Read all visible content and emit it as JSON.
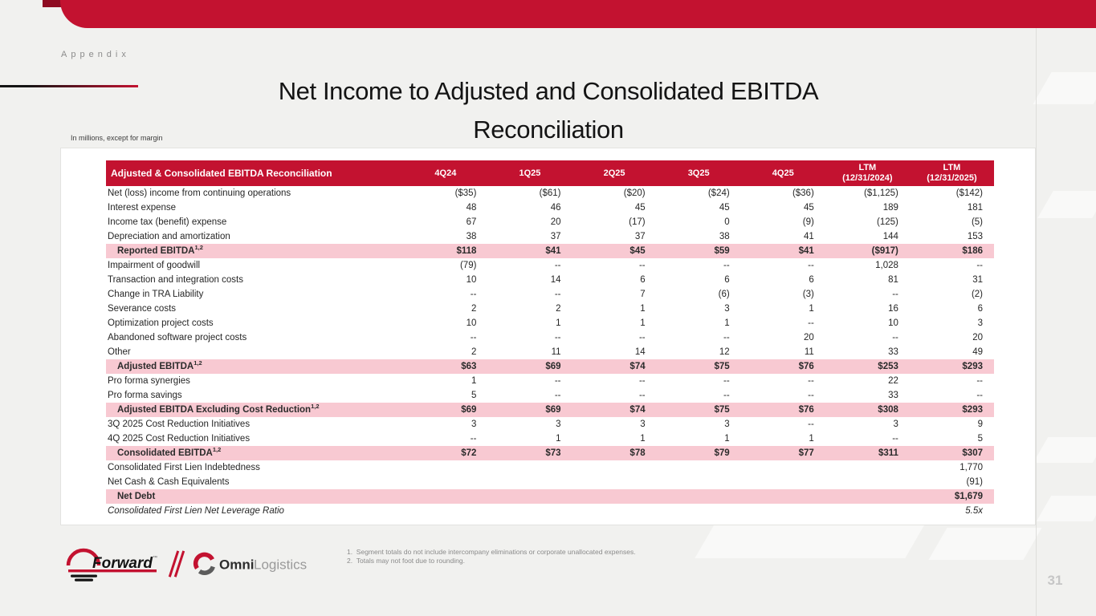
{
  "slide": {
    "section_label": "Appendix",
    "title_line1": "Net Income to Adjusted and Consolidated EBITDA",
    "title_line2": "Reconciliation",
    "units_note": "In millions, except for margin",
    "page_number": "31"
  },
  "colors": {
    "accent_red": "#C31230",
    "highlight_pink": "#F8C9D2"
  },
  "table": {
    "title_column_header": "Adjusted & Consolidated EBITDA Reconciliation",
    "column_keys": [
      "4q24",
      "1q25",
      "2q25",
      "3q25",
      "4q25",
      "ltm-12-31-2024",
      "ltm-12-31-2025"
    ],
    "columns": [
      [
        "4Q24"
      ],
      [
        "1Q25"
      ],
      [
        "2Q25"
      ],
      [
        "3Q25"
      ],
      [
        "4Q25"
      ],
      [
        "LTM",
        "(12/31/2024)"
      ],
      [
        "LTM",
        "(12/31/2025)"
      ]
    ],
    "rows": [
      {
        "label": "Net (loss) income from continuing operations",
        "style": "normal",
        "values": [
          "($35)",
          "($61)",
          "($20)",
          "($24)",
          "($36)",
          "($1,125)",
          "($142)"
        ]
      },
      {
        "label": "Interest expense",
        "style": "normal",
        "values": [
          "48",
          "46",
          "45",
          "45",
          "45",
          "189",
          "181"
        ]
      },
      {
        "label": "Income tax (benefit) expense",
        "style": "normal",
        "values": [
          "67",
          "20",
          "(17)",
          "0",
          "(9)",
          "(125)",
          "(5)"
        ]
      },
      {
        "label": "Depreciation and amortization",
        "style": "normal",
        "values": [
          "38",
          "37",
          "37",
          "38",
          "41",
          "144",
          "153"
        ]
      },
      {
        "label": "Reported EBITDA",
        "sup": "1,2",
        "style": "highlight",
        "values": [
          "$118",
          "$41",
          "$45",
          "$59",
          "$41",
          "($917)",
          "$186"
        ]
      },
      {
        "label": "Impairment of goodwill",
        "style": "normal",
        "values": [
          "(79)",
          "--",
          "--",
          "--",
          "--",
          "1,028",
          "--"
        ]
      },
      {
        "label": "Transaction and integration costs",
        "style": "normal",
        "values": [
          "10",
          "14",
          "6",
          "6",
          "6",
          "81",
          "31"
        ]
      },
      {
        "label": "Change in TRA Liability",
        "style": "normal",
        "values": [
          "--",
          "--",
          "7",
          "(6)",
          "(3)",
          "--",
          "(2)"
        ]
      },
      {
        "label": "Severance costs",
        "style": "normal",
        "values": [
          "2",
          "2",
          "1",
          "3",
          "1",
          "16",
          "6"
        ]
      },
      {
        "label": "Optimization project costs",
        "style": "normal",
        "values": [
          "10",
          "1",
          "1",
          "1",
          "--",
          "10",
          "3"
        ]
      },
      {
        "label": "Abandoned software project costs",
        "style": "normal",
        "values": [
          "--",
          "--",
          "--",
          "--",
          "20",
          "--",
          "20"
        ]
      },
      {
        "label": "Other",
        "style": "normal",
        "values": [
          "2",
          "11",
          "14",
          "12",
          "11",
          "33",
          "49"
        ]
      },
      {
        "label": "Adjusted EBITDA",
        "sup": "1,2",
        "style": "highlight",
        "values": [
          "$63",
          "$69",
          "$74",
          "$75",
          "$76",
          "$253",
          "$293"
        ]
      },
      {
        "label": "Pro forma synergies",
        "style": "normal",
        "values": [
          "1",
          "--",
          "--",
          "--",
          "--",
          "22",
          "--"
        ]
      },
      {
        "label": "Pro forma savings",
        "style": "normal",
        "values": [
          "5",
          "--",
          "--",
          "--",
          "--",
          "33",
          "--"
        ]
      },
      {
        "label": "Adjusted EBITDA Excluding Cost Reduction",
        "sup": "1,2",
        "style": "highlight",
        "values": [
          "$69",
          "$69",
          "$74",
          "$75",
          "$76",
          "$308",
          "$293"
        ]
      },
      {
        "label": "3Q 2025 Cost Reduction Initiatives",
        "style": "normal",
        "values": [
          "3",
          "3",
          "3",
          "3",
          "--",
          "3",
          "9"
        ]
      },
      {
        "label": "4Q 2025 Cost Reduction Initiatives",
        "style": "normal",
        "values": [
          "--",
          "1",
          "1",
          "1",
          "1",
          "--",
          "5"
        ]
      },
      {
        "label": "Consolidated EBITDA",
        "sup": "1,2",
        "style": "highlight",
        "values": [
          "$72",
          "$73",
          "$78",
          "$79",
          "$77",
          "$311",
          "$307"
        ]
      },
      {
        "label": "Consolidated First Lien Indebtedness",
        "style": "normal",
        "values": [
          "",
          "",
          "",
          "",
          "",
          "",
          "1,770"
        ]
      },
      {
        "label": "Net Cash & Cash Equivalents",
        "style": "normal",
        "values": [
          "",
          "",
          "",
          "",
          "",
          "",
          "(91)"
        ]
      },
      {
        "label": "Net Debt",
        "style": "highlight",
        "values": [
          "",
          "",
          "",
          "",
          "",
          "",
          "$1,679"
        ]
      },
      {
        "label": "Consolidated First Lien Net Leverage Ratio",
        "style": "italic",
        "values": [
          "",
          "",
          "",
          "",
          "",
          "",
          "5.5x"
        ]
      }
    ]
  },
  "footer": {
    "forward_logo_text": "Forward",
    "forward_tm": "™",
    "omni_logo_bold": "Omni",
    "omni_logo_light": "Logistics",
    "footnotes": [
      "Segment totals do not include intercompany eliminations or corporate unallocated expenses.",
      "Totals may not foot due to rounding."
    ]
  }
}
